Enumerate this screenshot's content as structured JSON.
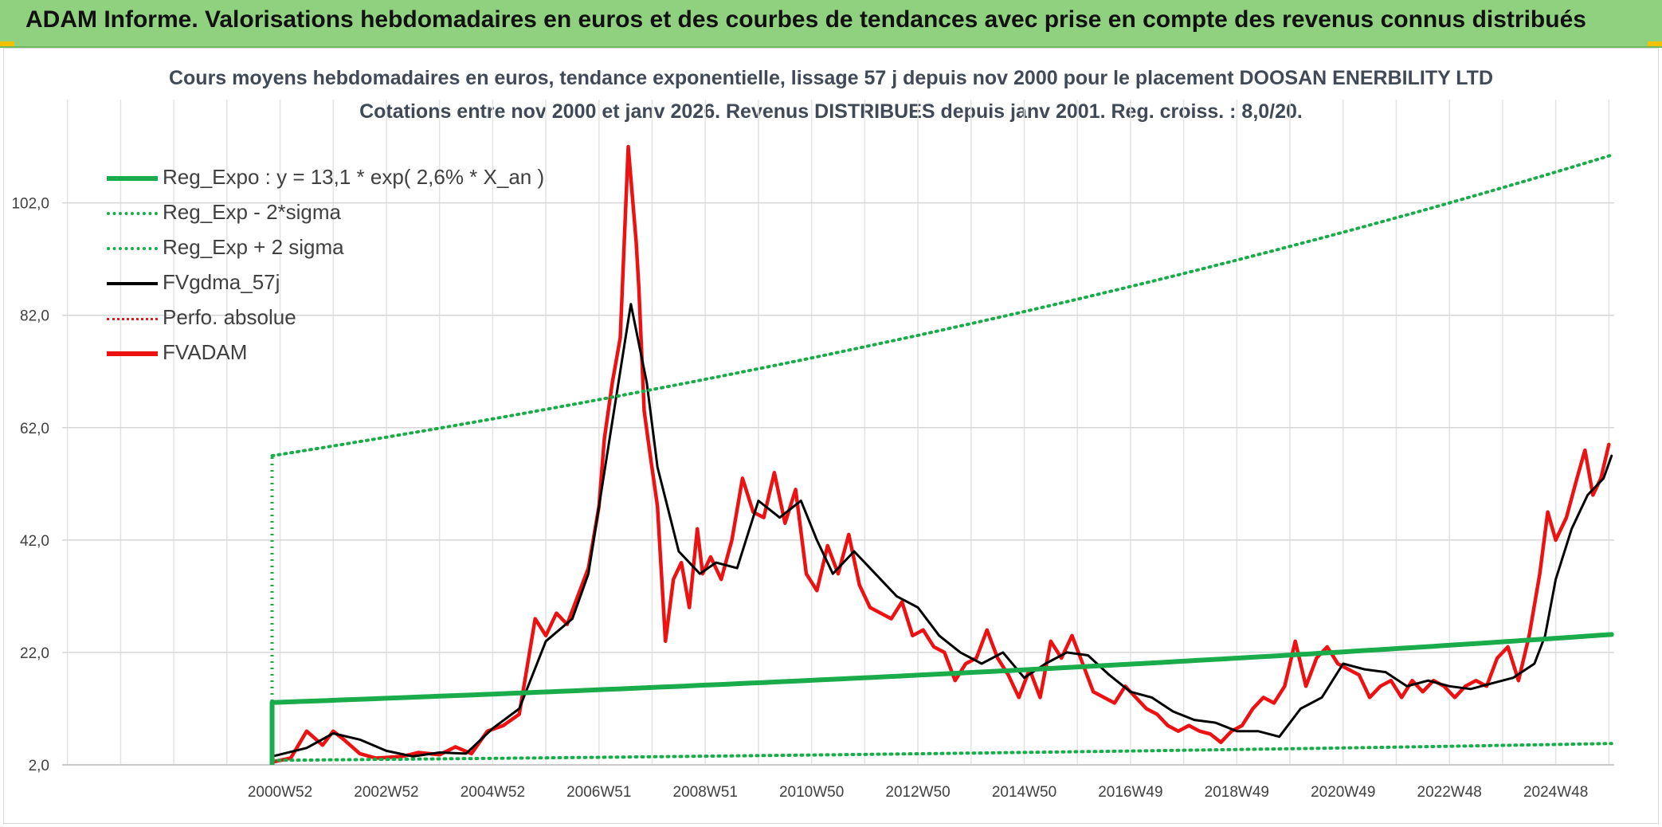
{
  "header": {
    "title": "ADAM Informe. Valorisations hebdomadaires en euros et des courbes de tendances avec prise en compte des revenus connus distribués"
  },
  "chart_data": {
    "type": "line",
    "title": "Cours moyens hebdomadaires en euros, tendance exponentielle, lissage 57 j depuis nov 2000 pour le placement DOOSAN ENERBILITY LTD",
    "subtitle": "Cotations entre nov 2000 et janv 2026. Revenus DISTRIBUES depuis janv 2001. Reg. croiss. : 8,0/20.",
    "xlabel": "",
    "ylabel": "",
    "ylim": [
      2,
      114
    ],
    "xlim": [
      1996.9,
      2026.1
    ],
    "y_ticks": [
      "2,0",
      "22,0",
      "42,0",
      "62,0",
      "82,0",
      "102,0"
    ],
    "y_tick_values": [
      2,
      22,
      42,
      62,
      82,
      102
    ],
    "x_tick_labels": [
      "2000W52",
      "2002W52",
      "2004W52",
      "2006W51",
      "2008W51",
      "2010W50",
      "2012W50",
      "2014W50",
      "2016W49",
      "2018W49",
      "2020W49",
      "2022W48",
      "2024W48"
    ],
    "x_tick_years": [
      2001.0,
      2003.0,
      2005.0,
      2007.0,
      2009.0,
      2011.0,
      2013.0,
      2015.0,
      2017.0,
      2019.0,
      2021.0,
      2023.0,
      2025.0
    ],
    "grid": true,
    "legend_position": "top-left",
    "legend": [
      {
        "name": "Reg_Expo : y = 13,1 * exp( 2,6% *  X_an )",
        "color": "#1aab4a",
        "style": "solid-thick"
      },
      {
        "name": "Reg_Exp - 2*sigma",
        "color": "#1aab4a",
        "style": "dotted"
      },
      {
        "name": "Reg_Exp + 2 sigma",
        "color": "#1aab4a",
        "style": "dotted"
      },
      {
        "name": "FVgdma_57j",
        "color": "#000000",
        "style": "solid"
      },
      {
        "name": "Perfo. absolue",
        "color": "#e02020",
        "style": "dotted"
      },
      {
        "name": "FVADAM",
        "color": "#ee1111",
        "style": "solid-thick"
      }
    ],
    "series": [
      {
        "name": "Reg_Expo : y = 13,1 * exp( 2,6% *  X_an )",
        "x": [
          2000.85,
          2026.05
        ],
        "values": [
          13.1,
          25.2
        ],
        "curve": "exponential"
      },
      {
        "name": "Reg_Exp - 2*sigma",
        "x": [
          2000.85,
          2026.05
        ],
        "values": [
          2.8,
          5.8
        ],
        "curve": "exponential"
      },
      {
        "name": "Reg_Exp + 2 sigma",
        "x": [
          2000.85,
          2026.05
        ],
        "values": [
          57.0,
          110.5
        ],
        "curve": "exponential"
      },
      {
        "name": "FVgdma_57j",
        "x": [
          2000.85,
          2001.5,
          2002.0,
          2002.5,
          2003.0,
          2003.5,
          2004.0,
          2004.5,
          2005.0,
          2005.5,
          2006.0,
          2006.5,
          2006.8,
          2007.2,
          2007.6,
          2007.9,
          2008.1,
          2008.5,
          2008.9,
          2009.2,
          2009.6,
          2010.0,
          2010.4,
          2010.8,
          2011.1,
          2011.4,
          2011.8,
          2012.2,
          2012.6,
          2013.0,
          2013.4,
          2013.8,
          2014.2,
          2014.6,
          2015.0,
          2015.4,
          2015.8,
          2016.2,
          2016.6,
          2017.0,
          2017.4,
          2017.8,
          2018.2,
          2018.6,
          2019.0,
          2019.4,
          2019.8,
          2020.2,
          2020.6,
          2021.0,
          2021.4,
          2021.8,
          2022.2,
          2022.6,
          2023.0,
          2023.4,
          2023.8,
          2024.2,
          2024.6,
          2024.8,
          2025.0,
          2025.3,
          2025.6,
          2025.9,
          2026.05
        ],
        "values": [
          3.5,
          5.0,
          7.6,
          6.5,
          4.5,
          3.5,
          4.2,
          4.0,
          8.5,
          12.0,
          24.0,
          28.0,
          36.0,
          60.0,
          84.0,
          70.0,
          55.0,
          40.0,
          36.0,
          38.0,
          37.0,
          49.0,
          46.0,
          49.0,
          42.0,
          36.0,
          40.0,
          36.0,
          32.0,
          30.0,
          25.0,
          22.0,
          20.0,
          22.0,
          17.5,
          20.0,
          22.0,
          21.5,
          18.0,
          15.0,
          14.0,
          11.5,
          10.0,
          9.5,
          8.0,
          8.0,
          7.0,
          12.0,
          14.0,
          20.0,
          19.0,
          18.5,
          16.0,
          17.0,
          16.0,
          15.5,
          16.5,
          17.5,
          20.0,
          25.0,
          35.0,
          44.0,
          50.0,
          53.0,
          57.0
        ]
      },
      {
        "name": "FVADAM",
        "x": [
          2000.85,
          2001.2,
          2001.5,
          2001.8,
          2002.0,
          2002.2,
          2002.5,
          2002.8,
          2003.0,
          2003.3,
          2003.6,
          2004.0,
          2004.3,
          2004.6,
          2004.9,
          2005.2,
          2005.5,
          2005.8,
          2006.0,
          2006.2,
          2006.4,
          2006.6,
          2006.8,
          2007.0,
          2007.1,
          2007.25,
          2007.4,
          2007.55,
          2007.7,
          2007.75,
          2007.85,
          2007.95,
          2008.1,
          2008.25,
          2008.4,
          2008.55,
          2008.7,
          2008.85,
          2008.95,
          2009.1,
          2009.3,
          2009.5,
          2009.7,
          2009.9,
          2010.1,
          2010.3,
          2010.5,
          2010.7,
          2010.9,
          2011.1,
          2011.3,
          2011.5,
          2011.7,
          2011.9,
          2012.1,
          2012.3,
          2012.5,
          2012.7,
          2012.9,
          2013.1,
          2013.3,
          2013.5,
          2013.7,
          2013.9,
          2014.1,
          2014.3,
          2014.5,
          2014.7,
          2014.9,
          2015.1,
          2015.3,
          2015.5,
          2015.7,
          2015.9,
          2016.1,
          2016.3,
          2016.5,
          2016.7,
          2016.9,
          2017.1,
          2017.3,
          2017.5,
          2017.7,
          2017.9,
          2018.1,
          2018.3,
          2018.5,
          2018.7,
          2018.9,
          2019.1,
          2019.3,
          2019.5,
          2019.7,
          2019.9,
          2020.1,
          2020.3,
          2020.5,
          2020.7,
          2020.9,
          2021.1,
          2021.3,
          2021.5,
          2021.7,
          2021.9,
          2022.1,
          2022.3,
          2022.5,
          2022.7,
          2022.9,
          2023.1,
          2023.3,
          2023.5,
          2023.7,
          2023.9,
          2024.1,
          2024.3,
          2024.5,
          2024.7,
          2024.85,
          2025.0,
          2025.2,
          2025.4,
          2025.55,
          2025.7,
          2025.85,
          2026.0
        ],
        "values": [
          2.5,
          3.2,
          8.0,
          5.5,
          8.0,
          6.5,
          4.0,
          3.2,
          3.3,
          3.5,
          4.2,
          3.8,
          5.2,
          4.0,
          8.0,
          9.0,
          11.0,
          28.0,
          25.0,
          29.0,
          27.0,
          32.0,
          37.0,
          48.0,
          60.0,
          70.0,
          78.0,
          112.0,
          95.0,
          87.0,
          65.0,
          58.0,
          48.0,
          24.0,
          35.0,
          38.0,
          30.0,
          44.0,
          36.0,
          39.0,
          35.0,
          42.0,
          53.0,
          47.0,
          46.0,
          54.0,
          45.0,
          51.0,
          36.0,
          33.0,
          41.0,
          36.0,
          43.0,
          34.0,
          30.0,
          29.0,
          28.0,
          31.0,
          25.0,
          26.0,
          23.0,
          22.0,
          17.0,
          20.0,
          21.0,
          26.0,
          21.0,
          18.0,
          14.0,
          19.0,
          14.0,
          24.0,
          21.0,
          25.0,
          20.0,
          15.0,
          14.0,
          13.0,
          16.0,
          14.0,
          12.0,
          11.0,
          9.0,
          8.0,
          9.0,
          8.0,
          7.5,
          6.0,
          8.0,
          9.0,
          12.0,
          14.0,
          13.0,
          16.0,
          24.0,
          16.0,
          21.0,
          23.0,
          20.0,
          19.0,
          18.0,
          14.0,
          16.0,
          17.0,
          14.0,
          17.0,
          15.0,
          17.0,
          16.0,
          14.0,
          16.0,
          17.0,
          16.0,
          21.0,
          23.0,
          17.0,
          25.0,
          36.0,
          47.0,
          42.0,
          46.0,
          53.0,
          58.0,
          50.0,
          53.0,
          59.0
        ]
      }
    ]
  }
}
